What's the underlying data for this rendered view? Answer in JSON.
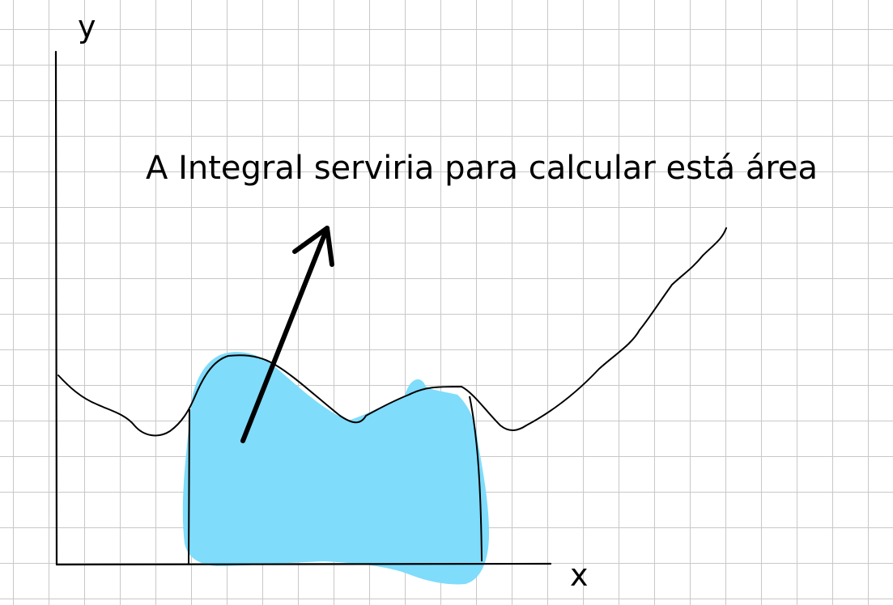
{
  "labels": {
    "y_axis": "y",
    "x_axis": "x",
    "annotation": "A Integral serviria para calcular está área"
  },
  "colors": {
    "background": "#ffffff",
    "grid": "#c8c8c8",
    "ink": "#000000",
    "area_fill": "#7fdcfb"
  }
}
